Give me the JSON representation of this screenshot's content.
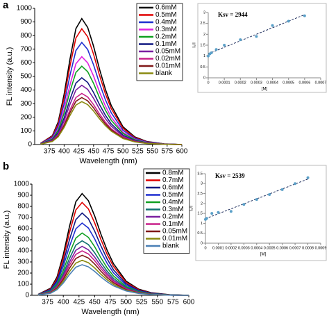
{
  "panel_labels": [
    "a",
    "b"
  ],
  "chart_data": [
    {
      "type": "line",
      "xlabel": "Wavelength (nm)",
      "ylabel": "FL intensity (a.u.)",
      "xlim": [
        350,
        600
      ],
      "xticks": [
        375,
        400,
        425,
        450,
        475,
        500,
        525,
        550,
        575,
        600
      ],
      "ylim": [
        0,
        1000
      ],
      "yticks": [
        0,
        100,
        200,
        300,
        400,
        500,
        600,
        700,
        800,
        900,
        1000
      ],
      "legend": "upper right",
      "x": [
        360,
        380,
        390,
        400,
        410,
        420,
        430,
        440,
        450,
        460,
        470,
        480,
        500,
        520,
        540,
        570,
        600
      ],
      "series": [
        {
          "name": "0.6mM",
          "color": "#000000",
          "values": [
            9,
            65,
            167,
            370,
            629,
            851,
            925,
            860,
            722,
            555,
            407,
            287,
            130,
            56,
            23,
            5,
            0
          ]
        },
        {
          "name": "0.5mM",
          "color": "#e00000",
          "values": [
            9,
            60,
            153,
            340,
            578,
            782,
            850,
            791,
            663,
            510,
            374,
            264,
            119,
            51,
            21,
            4,
            0
          ]
        },
        {
          "name": "0.4mM",
          "color": "#1f2fd0",
          "values": [
            8,
            53,
            135,
            300,
            510,
            690,
            750,
            698,
            585,
            450,
            330,
            233,
            105,
            45,
            19,
            4,
            0
          ]
        },
        {
          "name": "0.3mM",
          "color": "#e020e0",
          "values": [
            6,
            45,
            116,
            258,
            439,
            593,
            645,
            600,
            503,
            387,
            284,
            200,
            90,
            39,
            16,
            3,
            0
          ]
        },
        {
          "name": "0.2mM",
          "color": "#10a020",
          "values": [
            6,
            40,
            104,
            230,
            391,
            529,
            575,
            535,
            449,
            345,
            253,
            178,
            81,
            35,
            14,
            3,
            0
          ]
        },
        {
          "name": "0.1mM",
          "color": "#101880",
          "values": [
            5,
            34,
            88,
            196,
            333,
            451,
            490,
            456,
            382,
            294,
            216,
            152,
            69,
            29,
            12,
            2,
            0
          ]
        },
        {
          "name": "0.05mM",
          "color": "#7a1fa0",
          "values": [
            4,
            30,
            78,
            174,
            296,
            400,
            435,
            405,
            339,
            261,
            191,
            135,
            61,
            26,
            11,
            2,
            0
          ]
        },
        {
          "name": "0.02mM",
          "color": "#c8208a",
          "values": [
            4,
            26,
            68,
            150,
            255,
            345,
            375,
            349,
            293,
            225,
            165,
            116,
            53,
            23,
            9,
            2,
            0
          ]
        },
        {
          "name": "0.01mM",
          "color": "#801818",
          "values": [
            3,
            24,
            62,
            138,
            235,
            317,
            345,
            321,
            269,
            207,
            152,
            107,
            48,
            21,
            9,
            2,
            0
          ]
        },
        {
          "name": "blank",
          "color": "#8a8a10",
          "values": [
            3,
            22,
            57,
            126,
            214,
            290,
            315,
            293,
            246,
            189,
            139,
            98,
            44,
            19,
            8,
            2,
            0
          ]
        }
      ]
    },
    {
      "type": "scatter",
      "annotation": "Ksv = 2944",
      "xlabel": "[M]",
      "ylabel": "I₀/I",
      "xlim": [
        0,
        0.0007
      ],
      "xticks": [
        0,
        0.0001,
        0.0002,
        0.0003,
        0.0004,
        0.0005,
        0.0006,
        0.0007
      ],
      "ylim": [
        0,
        3
      ],
      "yticks": [
        0,
        0.5,
        1,
        1.5,
        2,
        2.5,
        3
      ],
      "color": "#5aa0c8",
      "trendline": true,
      "x": [
        0,
        1e-05,
        2e-05,
        5e-05,
        0.0001,
        0.0002,
        0.0003,
        0.0004,
        0.0005,
        0.0006
      ],
      "values": [
        1.0,
        1.1,
        1.15,
        1.3,
        1.5,
        1.75,
        1.9,
        2.4,
        2.6,
        2.85
      ]
    },
    {
      "type": "line",
      "xlabel": "Wavelength (nm)",
      "ylabel": "FL intensity (a.u.)",
      "xlim": [
        350,
        600
      ],
      "xticks": [
        375,
        400,
        425,
        450,
        475,
        500,
        525,
        550,
        575,
        600
      ],
      "ylim": [
        0,
        1000
      ],
      "yticks": [
        0,
        100,
        200,
        300,
        400,
        500,
        600,
        700,
        800,
        900,
        1000
      ],
      "legend": "upper right",
      "x": [
        360,
        380,
        390,
        400,
        410,
        420,
        430,
        440,
        450,
        460,
        470,
        480,
        500,
        520,
        540,
        570,
        600
      ],
      "series": [
        {
          "name": "0.8mM",
          "color": "#000000",
          "values": [
            9,
            64,
            165,
            366,
            622,
            842,
            915,
            851,
            714,
            549,
            403,
            284,
            128,
            55,
            23,
            5,
            0
          ]
        },
        {
          "name": "0.7mM",
          "color": "#e00000",
          "values": [
            8,
            58,
            150,
            334,
            568,
            768,
            835,
            777,
            651,
            501,
            367,
            259,
            117,
            50,
            21,
            4,
            0
          ]
        },
        {
          "name": "0.6mM",
          "color": "#101880",
          "values": [
            7,
            52,
            133,
            296,
            503,
            681,
            740,
            688,
            577,
            444,
            326,
            229,
            104,
            44,
            19,
            4,
            0
          ]
        },
        {
          "name": "0.5mM",
          "color": "#1f2fd0",
          "values": [
            7,
            46,
            117,
            260,
            442,
            598,
            650,
            605,
            507,
            390,
            286,
            202,
            91,
            39,
            16,
            3,
            0
          ]
        },
        {
          "name": "0.4mM",
          "color": "#10a020",
          "values": [
            6,
            39,
            101,
            224,
            381,
            515,
            560,
            521,
            437,
            336,
            246,
            174,
            78,
            34,
            14,
            3,
            0
          ]
        },
        {
          "name": "0.3mM",
          "color": "#107070",
          "values": [
            5,
            34,
            88,
            196,
            333,
            451,
            490,
            456,
            382,
            294,
            216,
            152,
            69,
            29,
            12,
            2,
            0
          ]
        },
        {
          "name": "0.2mM",
          "color": "#7a1fa0",
          "values": [
            4,
            31,
            79,
            176,
            299,
            405,
            440,
            409,
            343,
            264,
            194,
            136,
            62,
            26,
            11,
            2,
            0
          ]
        },
        {
          "name": "0.1mM",
          "color": "#c8208a",
          "values": [
            4,
            28,
            72,
            160,
            272,
            368,
            400,
            372,
            312,
            240,
            176,
            124,
            56,
            24,
            10,
            2,
            0
          ]
        },
        {
          "name": "0.05mM",
          "color": "#801818",
          "values": [
            4,
            25,
            65,
            144,
            245,
            331,
            360,
            335,
            281,
            216,
            158,
            112,
            50,
            22,
            9,
            2,
            0
          ]
        },
        {
          "name": "0.01mM",
          "color": "#8a8a10",
          "values": [
            3,
            22,
            57,
            126,
            214,
            290,
            315,
            293,
            246,
            189,
            139,
            98,
            44,
            19,
            8,
            2,
            0
          ]
        },
        {
          "name": "blank",
          "color": "#4a7fb5",
          "values": [
            3,
            19,
            50,
            110,
            187,
            253,
            275,
            256,
            215,
            165,
            121,
            85,
            39,
            17,
            7,
            1,
            0
          ]
        }
      ]
    },
    {
      "type": "scatter",
      "annotation": "Ksv = 2539",
      "xlabel": "[M]",
      "ylabel": "I₀/I",
      "xlim": [
        0,
        0.0009
      ],
      "xticks": [
        0,
        0.0001,
        0.0002,
        0.0003,
        0.0004,
        0.0005,
        0.0006,
        0.0007,
        0.0008,
        0.0009
      ],
      "ylim": [
        0,
        3.5
      ],
      "yticks": [
        0,
        0.5,
        1,
        1.5,
        2,
        2.5,
        3,
        3.5
      ],
      "color": "#5aa0c8",
      "trendline": true,
      "x": [
        0,
        1e-05,
        5e-05,
        0.0001,
        0.0002,
        0.0003,
        0.0004,
        0.0005,
        0.0006,
        0.0007,
        0.0008
      ],
      "values": [
        1.2,
        1.25,
        1.5,
        1.55,
        1.6,
        1.95,
        2.2,
        2.45,
        2.7,
        3.0,
        3.3
      ]
    }
  ]
}
